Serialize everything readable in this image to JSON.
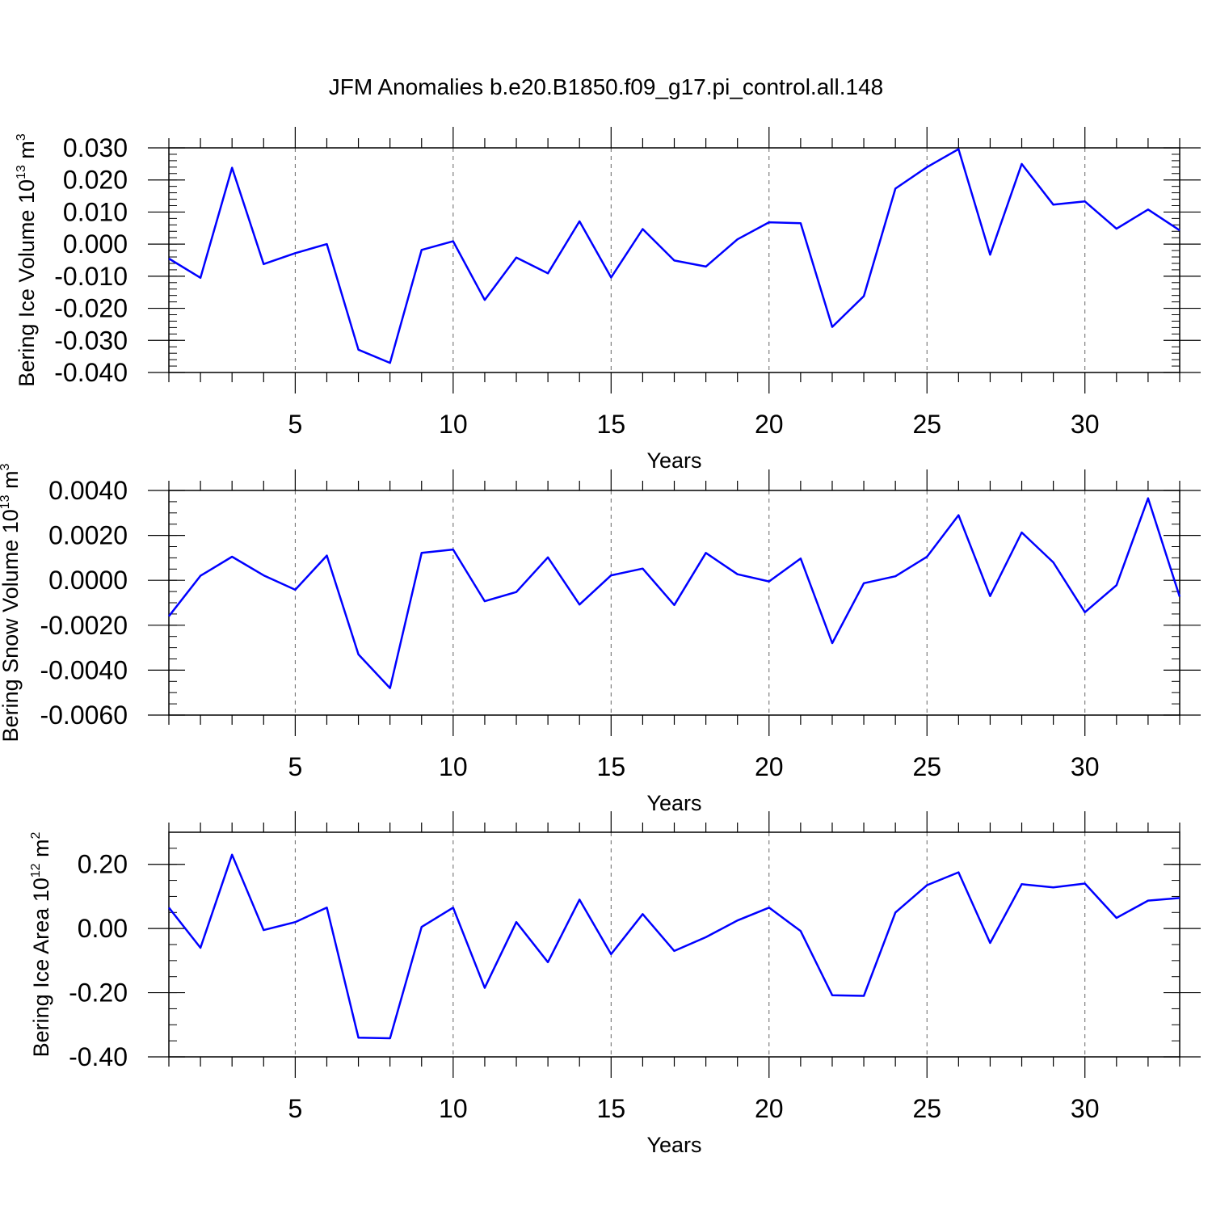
{
  "title": "JFM Anomalies b.e20.B1850.f09_g17.pi_control.all.148",
  "colors": {
    "line": "#0000ff",
    "axis": "#000000",
    "grid": "#666666"
  },
  "chart_data": [
    {
      "type": "line",
      "name": "ice-volume",
      "ylabel": {
        "main": "Bering Ice Volume 10",
        "exp": "13",
        "unit": " m",
        "unit_exp": "3"
      },
      "xlabel": "Years",
      "xlim": [
        1,
        33
      ],
      "ylim": [
        -0.04,
        0.03
      ],
      "y_ticks": [
        -0.04,
        -0.03,
        -0.02,
        -0.01,
        0.0,
        0.01,
        0.02,
        0.03
      ],
      "y_tick_labels": [
        "-0.040",
        "-0.030",
        "-0.020",
        "-0.010",
        "0.000",
        "0.010",
        "0.020",
        "0.030"
      ],
      "y_minor_step": 0.002,
      "x_ticks": [
        5,
        10,
        15,
        20,
        25,
        30
      ],
      "x_tick_labels": [
        "5",
        "10",
        "15",
        "20",
        "25",
        "30"
      ],
      "x": [
        1,
        2,
        3,
        4,
        5,
        6,
        7,
        8,
        9,
        10,
        11,
        12,
        13,
        14,
        15,
        16,
        17,
        18,
        19,
        20,
        21,
        22,
        23,
        24,
        25,
        26,
        27,
        28,
        29,
        30,
        31,
        32,
        33
      ],
      "values": [
        -0.0045,
        -0.0105,
        0.0238,
        -0.0062,
        -0.0028,
        0.0,
        -0.0329,
        -0.037,
        -0.0018,
        0.0009,
        -0.0174,
        -0.0042,
        -0.0091,
        0.0071,
        -0.0104,
        0.0047,
        -0.0051,
        -0.007,
        0.0015,
        0.0068,
        0.0065,
        -0.0258,
        -0.0162,
        0.0173,
        0.024,
        0.0296,
        -0.0033,
        0.025,
        0.0123,
        0.0133,
        0.0048,
        0.0108,
        0.0043
      ]
    },
    {
      "type": "line",
      "name": "snow-volume",
      "ylabel": {
        "main": "Bering Snow Volume 10",
        "exp": "13",
        "unit": " m",
        "unit_exp": "3"
      },
      "xlabel": "Years",
      "xlim": [
        1,
        33
      ],
      "ylim": [
        -0.006,
        0.004
      ],
      "y_ticks": [
        -0.006,
        -0.004,
        -0.002,
        0.0,
        0.002,
        0.004
      ],
      "y_tick_labels": [
        "-0.0060",
        "-0.0040",
        "-0.0020",
        "0.0000",
        "0.0020",
        "0.0040"
      ],
      "y_minor_step": 0.0005,
      "x_ticks": [
        5,
        10,
        15,
        20,
        25,
        30
      ],
      "x_tick_labels": [
        "5",
        "10",
        "15",
        "20",
        "25",
        "30"
      ],
      "x": [
        1,
        2,
        3,
        4,
        5,
        6,
        7,
        8,
        9,
        10,
        11,
        12,
        13,
        14,
        15,
        16,
        17,
        18,
        19,
        20,
        21,
        22,
        23,
        24,
        25,
        26,
        27,
        28,
        29,
        30,
        31,
        32,
        33
      ],
      "values": [
        -0.0016,
        0.0002,
        0.00105,
        0.00022,
        -0.00042,
        0.0011,
        -0.0033,
        -0.0048,
        0.00122,
        0.00137,
        -0.00093,
        -0.00052,
        0.00102,
        -0.00108,
        0.00022,
        0.00052,
        -0.0011,
        0.00122,
        0.00027,
        -5e-05,
        0.00097,
        -0.0028,
        -0.00013,
        0.00018,
        0.00105,
        0.0029,
        -0.0007,
        0.00213,
        0.0008,
        -0.00142,
        -0.00022,
        0.00365,
        -0.00073
      ]
    },
    {
      "type": "line",
      "name": "ice-area",
      "ylabel": {
        "main": "Bering Ice Area 10",
        "exp": "12",
        "unit": " m",
        "unit_exp": "2"
      },
      "xlabel": "Years",
      "xlim": [
        1,
        33
      ],
      "ylim": [
        -0.4,
        0.3
      ],
      "y_ticks": [
        -0.4,
        -0.2,
        0.0,
        0.2
      ],
      "y_tick_labels": [
        "-0.40",
        "-0.20",
        "0.00",
        "0.20"
      ],
      "y_minor_step": 0.05,
      "x_ticks": [
        5,
        10,
        15,
        20,
        25,
        30
      ],
      "x_tick_labels": [
        "5",
        "10",
        "15",
        "20",
        "25",
        "30"
      ],
      "x": [
        1,
        2,
        3,
        4,
        5,
        6,
        7,
        8,
        9,
        10,
        11,
        12,
        13,
        14,
        15,
        16,
        17,
        18,
        19,
        20,
        21,
        22,
        23,
        24,
        25,
        26,
        27,
        28,
        29,
        30,
        31,
        32,
        33
      ],
      "values": [
        0.065,
        -0.06,
        0.23,
        -0.005,
        0.02,
        0.065,
        -0.34,
        -0.342,
        0.005,
        0.065,
        -0.185,
        0.02,
        -0.105,
        0.09,
        -0.08,
        0.045,
        -0.07,
        -0.027,
        0.025,
        0.065,
        -0.008,
        -0.208,
        -0.21,
        0.05,
        0.135,
        0.175,
        -0.045,
        0.138,
        0.128,
        0.14,
        0.033,
        0.087,
        0.095
      ]
    }
  ]
}
